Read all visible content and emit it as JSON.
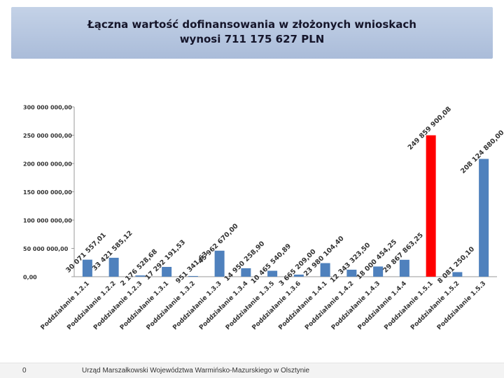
{
  "title": {
    "line1": "Łączna wartość dofinansowania w złożonych wnioskach",
    "line2": "wynosi 711 175 627 PLN"
  },
  "footer": {
    "page_number": "0",
    "organization": "Urząd Marszałkowski Województwa Warmińsko-Mazurskiego w Olsztynie"
  },
  "chart_data": {
    "type": "bar",
    "title": "Łączna wartość dofinansowania w złożonych wnioskach wynosi 711 175 627 PLN",
    "xlabel": "",
    "ylabel": "",
    "ylim": [
      0,
      300000000
    ],
    "yticks": [
      0,
      50000000,
      100000000,
      150000000,
      200000000,
      250000000,
      300000000
    ],
    "ytick_labels": [
      "0,00",
      "50 000 000,00",
      "100 000 000,00",
      "150 000 000,00",
      "200 000 000,00",
      "250 000 000,00",
      "300 000 000,00"
    ],
    "grid": false,
    "legend": "none",
    "categories": [
      "Poddziałanie 1.2.1",
      "Poddziałanie 1.2.2",
      "Poddziałanie 1.2.3",
      "Poddziałanie 1.3.1",
      "Poddziałanie 1.3.2",
      "Poddziałanie 1.3.3",
      "Poddziałanie 1.3.4",
      "Poddziałanie 1.3.5",
      "Poddziałanie 1.3.6",
      "Poddziałanie 1.4.1",
      "Poddziałanie 1.4.2",
      "Poddziałanie 1.4.3",
      "Poddziałanie 1.4.4",
      "Poddziałanie 1.5.1",
      "Poddziałanie 1.5.2",
      "Poddziałanie 1.5.3"
    ],
    "values": [
      30071557.01,
      33421585.12,
      2176528.68,
      17292191.53,
      951341.63,
      45962670.0,
      14950258.9,
      10465540.89,
      3665209.0,
      23980104.4,
      12343323.5,
      18000454.25,
      29867863.25,
      249859900.08,
      8081250.1,
      208124880.0
    ],
    "labels": [
      "30 071 557,01",
      "33 421 585,12",
      "2 176 528,68",
      "17 292 191,53",
      "951 341,63",
      "45 962 670,00",
      "14 950 258,90",
      "10 465 540,89",
      "3 665 209,00",
      "23 980 104,40",
      "12 343 323,50",
      "18 000 454,25",
      "29 867 863,25",
      "249 859 900,08",
      "8 081 250,10",
      "208 124 880,00"
    ],
    "bar_color": "#4f81bd",
    "highlight_index": 13,
    "highlight_color": "#ff0000"
  }
}
